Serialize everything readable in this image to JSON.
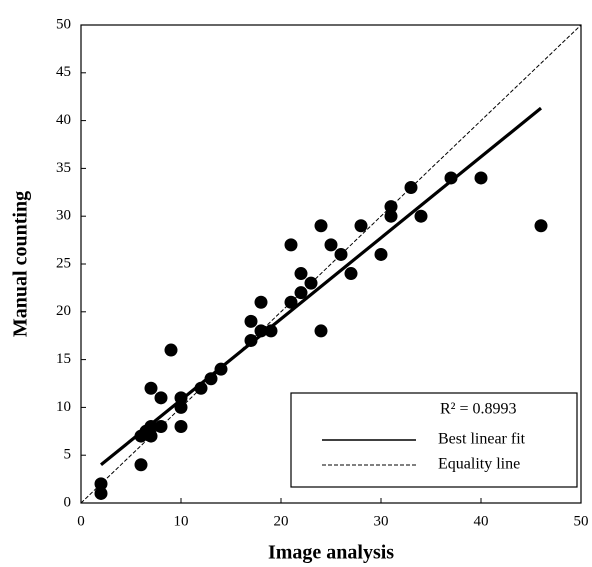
{
  "chart_data": {
    "type": "scatter",
    "x_label": "Image analysis",
    "y_label": "Manual counting",
    "xlim": [
      0,
      50
    ],
    "ylim": [
      0,
      50
    ],
    "xticks": [
      0,
      10,
      20,
      30,
      40,
      50
    ],
    "yticks": [
      0,
      5,
      10,
      15,
      20,
      25,
      30,
      35,
      40,
      45,
      50
    ],
    "annotation": "R² = 0.8993",
    "point_color": "#000000",
    "x": [
      2,
      2,
      6,
      6,
      6.5,
      7,
      7,
      7,
      8,
      8,
      9,
      10,
      10,
      10,
      12,
      13,
      14,
      17,
      17,
      18,
      18,
      19,
      21,
      21,
      22,
      22,
      23,
      24,
      24,
      25,
      26,
      27,
      28,
      30,
      31,
      31,
      33,
      34,
      37,
      40,
      46
    ],
    "values": [
      1,
      2,
      4,
      7,
      7.5,
      7,
      8,
      12,
      8,
      11,
      16,
      8,
      10,
      11,
      12,
      13,
      14,
      17,
      19,
      18,
      21,
      18,
      27,
      21,
      22,
      24,
      23,
      29,
      18,
      27,
      26,
      24,
      29,
      26,
      30,
      31,
      33,
      30,
      34,
      34,
      29
    ],
    "lines": [
      {
        "name": "Best linear fit",
        "color": "#000000",
        "dashed": false,
        "x": [
          2,
          46
        ],
        "values": [
          4,
          41.3
        ]
      },
      {
        "name": "Equality line",
        "color": "#000000",
        "dashed": true,
        "x": [
          0,
          50
        ],
        "values": [
          0,
          50
        ]
      }
    ]
  }
}
